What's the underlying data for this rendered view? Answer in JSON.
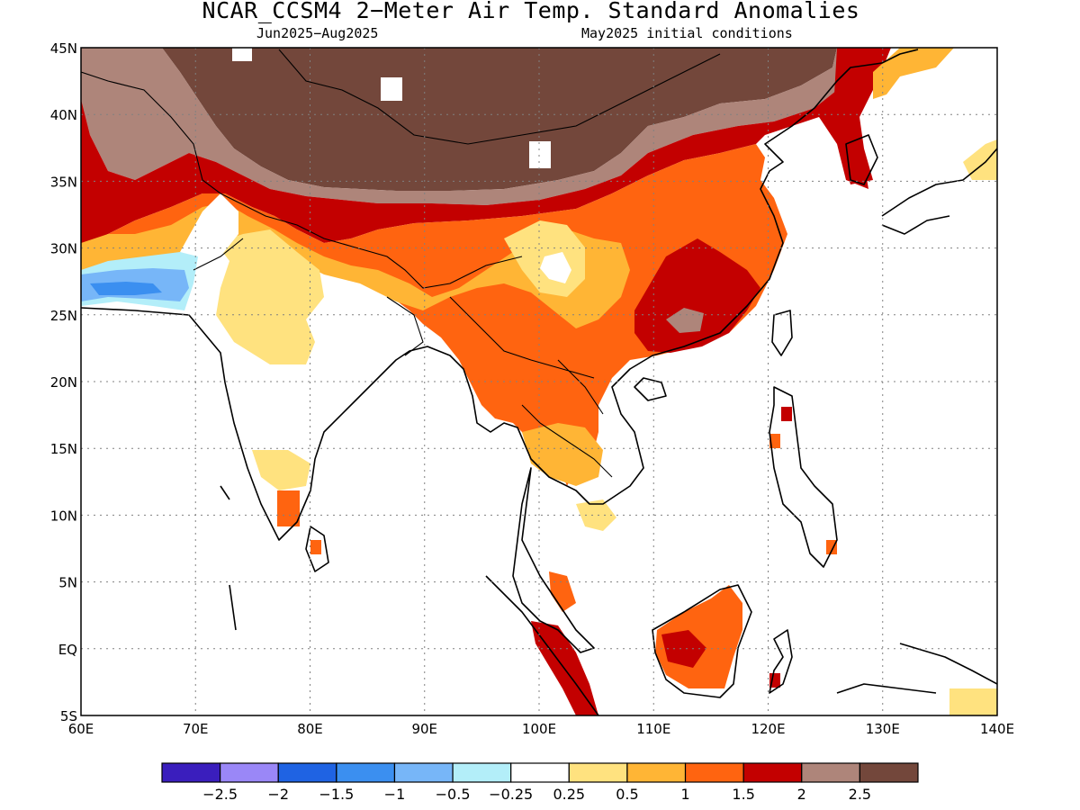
{
  "title": "NCAR_CCSM4 2−Meter Air Temp. Standard Anomalies",
  "subtitle_left": "Jun2025−Aug2025",
  "subtitle_right": "May2025 initial conditions",
  "map": {
    "lon_range": [
      60,
      140
    ],
    "lat_range": [
      -5,
      45
    ],
    "lat_ticks": [
      {
        "lat": 45,
        "label": "45N"
      },
      {
        "lat": 40,
        "label": "40N"
      },
      {
        "lat": 35,
        "label": "35N"
      },
      {
        "lat": 30,
        "label": "30N"
      },
      {
        "lat": 25,
        "label": "25N"
      },
      {
        "lat": 20,
        "label": "20N"
      },
      {
        "lat": 15,
        "label": "15N"
      },
      {
        "lat": 10,
        "label": "10N"
      },
      {
        "lat": 5,
        "label": "5N"
      },
      {
        "lat": 0,
        "label": "EQ"
      },
      {
        "lat": -5,
        "label": "5S"
      }
    ],
    "lon_ticks": [
      {
        "lon": 60,
        "label": "60E"
      },
      {
        "lon": 70,
        "label": "70E"
      },
      {
        "lon": 80,
        "label": "80E"
      },
      {
        "lon": 90,
        "label": "90E"
      },
      {
        "lon": 100,
        "label": "100E"
      },
      {
        "lon": 110,
        "label": "110E"
      },
      {
        "lon": 120,
        "label": "120E"
      },
      {
        "lon": 130,
        "label": "130E"
      },
      {
        "lon": 140,
        "label": "140E"
      }
    ],
    "grid": "dotted"
  },
  "colorbar": {
    "colors": [
      "#3a1ebd",
      "#9a87f7",
      "#1f63e3",
      "#3b8ff0",
      "#77b6f8",
      "#b3eef9",
      "#ffffff",
      "#ffe27f",
      "#ffb535",
      "#ff6410",
      "#c30000",
      "#ae857a",
      "#73473b"
    ],
    "labels": [
      "−2.5",
      "−2",
      "−1.5",
      "−1",
      "−0.5",
      "−0.25",
      "0.25",
      "0.5",
      "1",
      "1.5",
      "2",
      "2.5"
    ]
  }
}
